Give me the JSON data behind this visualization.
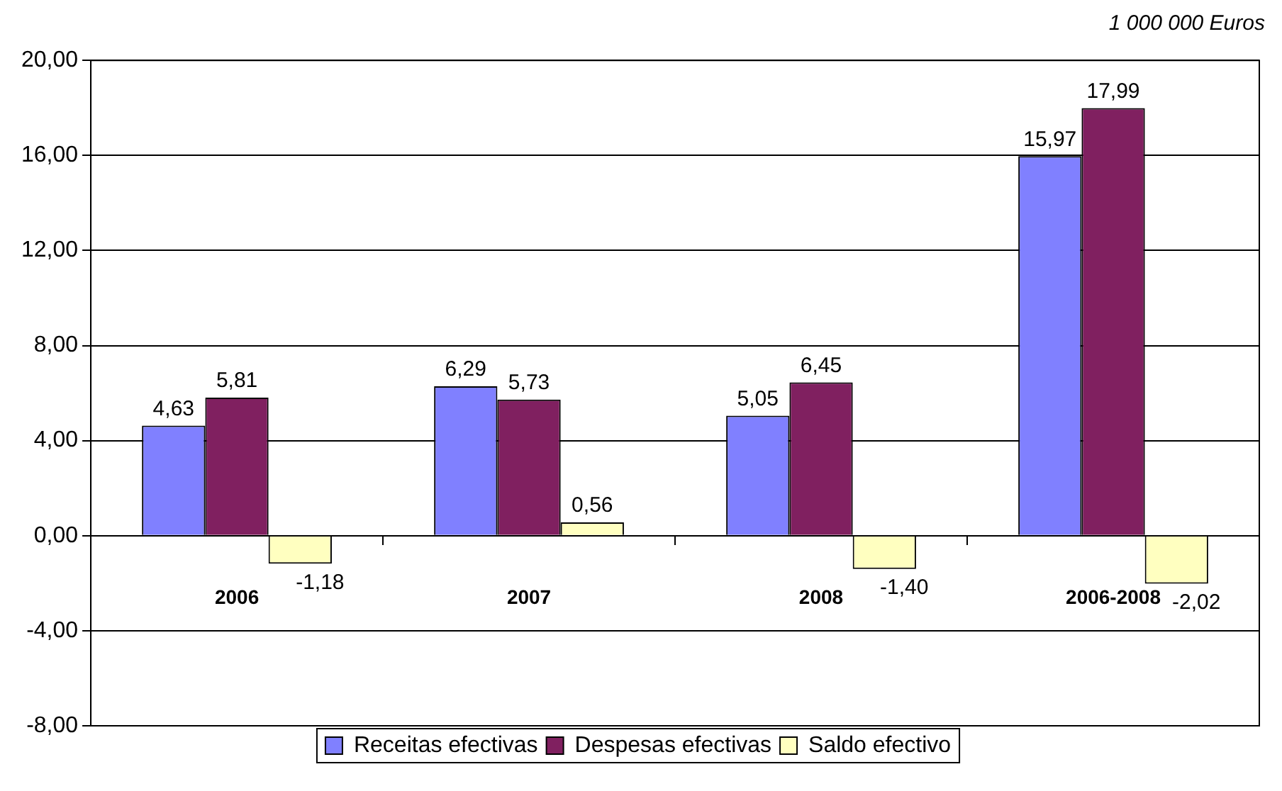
{
  "chart_data": {
    "type": "bar",
    "annotations": [
      "1 000 000 Euros"
    ],
    "categories": [
      "2006",
      "2007",
      "2008",
      "2006-2008"
    ],
    "series": [
      {
        "name": "Receitas efectivas",
        "color": "#8080ff",
        "values": [
          4.63,
          6.29,
          5.05,
          15.97
        ],
        "value_labels": [
          "4,63",
          "6,29",
          "5,05",
          "15,97"
        ]
      },
      {
        "name": "Despesas efectivas",
        "color": "#802060",
        "values": [
          5.81,
          5.73,
          6.45,
          17.99
        ],
        "value_labels": [
          "5,81",
          "5,73",
          "6,45",
          "17,99"
        ]
      },
      {
        "name": "Saldo efectivo",
        "color": "#ffffc0",
        "values": [
          -1.18,
          0.56,
          -1.4,
          -2.02
        ],
        "value_labels": [
          "-1,18",
          "0,56",
          "-1,40",
          "-2,02"
        ]
      }
    ],
    "ylim": [
      -8,
      20
    ],
    "yticks": [
      {
        "value": -8,
        "label": "-8,00"
      },
      {
        "value": -4,
        "label": "-4,00"
      },
      {
        "value": 0,
        "label": "0,00"
      },
      {
        "value": 4,
        "label": "4,00"
      },
      {
        "value": 8,
        "label": "8,00"
      },
      {
        "value": 12,
        "label": "12,00"
      },
      {
        "value": 16,
        "label": "16,00"
      },
      {
        "value": 20,
        "label": "20,00"
      }
    ],
    "grid": "y",
    "legend": "bottom"
  }
}
